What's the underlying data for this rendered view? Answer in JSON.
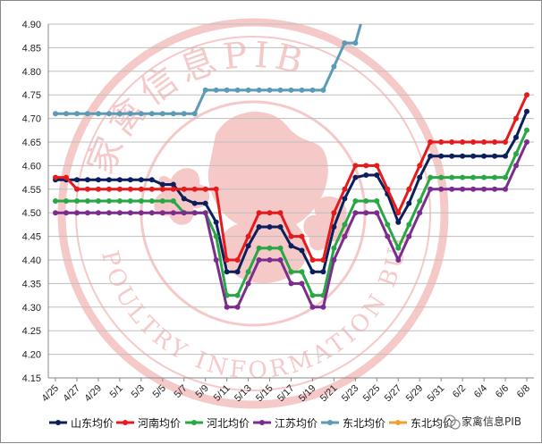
{
  "chart_data": {
    "type": "line",
    "title": "",
    "xlabel": "",
    "ylabel": "",
    "ylim": [
      4.15,
      4.9
    ],
    "y_ticks": [
      "4.90",
      "4.85",
      "4.80",
      "4.75",
      "4.70",
      "4.65",
      "4.60",
      "4.55",
      "4.50",
      "4.45",
      "4.40",
      "4.35",
      "4.30",
      "4.25",
      "4.20",
      "4.15"
    ],
    "x_tick_labels": [
      "4/25",
      "4/27",
      "4/29",
      "5/1",
      "5/3",
      "5/5",
      "5/7",
      "5/9",
      "5/11",
      "5/13",
      "5/15",
      "5/17",
      "5/19",
      "5/21",
      "5/23",
      "5/25",
      "5/27",
      "5/29",
      "5/31",
      "6/2",
      "6/4",
      "6/6",
      "6/8"
    ],
    "grid": true,
    "legend_position": "bottom",
    "series": [
      {
        "name": "山东均价",
        "color": "#0b1f5c",
        "values": [
          4.57,
          4.57,
          4.57,
          4.57,
          4.57,
          4.57,
          4.57,
          4.57,
          4.57,
          4.57,
          4.56,
          4.56,
          4.53,
          4.52,
          4.52,
          4.48,
          4.375,
          4.375,
          4.43,
          4.47,
          4.47,
          4.47,
          4.43,
          4.42,
          4.375,
          4.375,
          4.47,
          4.53,
          4.575,
          4.58,
          4.58,
          4.54,
          4.48,
          4.52,
          4.575,
          4.62,
          4.62,
          4.62,
          4.62,
          4.62,
          4.62,
          4.62,
          4.62,
          4.66,
          4.715
        ]
      },
      {
        "name": "河南均价",
        "color": "#e41a1c",
        "values": [
          4.575,
          4.575,
          4.55,
          4.55,
          4.55,
          4.55,
          4.55,
          4.55,
          4.55,
          4.55,
          4.55,
          4.55,
          4.55,
          4.55,
          4.55,
          4.55,
          4.4,
          4.4,
          4.45,
          4.5,
          4.5,
          4.5,
          4.45,
          4.45,
          4.4,
          4.4,
          4.5,
          4.55,
          4.6,
          4.6,
          4.6,
          4.55,
          4.5,
          4.55,
          4.6,
          4.65,
          4.65,
          4.65,
          4.65,
          4.65,
          4.65,
          4.65,
          4.65,
          4.7,
          4.75
        ]
      },
      {
        "name": "河北均价",
        "color": "#28a745",
        "values": [
          4.525,
          4.525,
          4.525,
          4.525,
          4.525,
          4.525,
          4.525,
          4.525,
          4.525,
          4.525,
          4.525,
          4.525,
          4.5,
          4.5,
          4.5,
          4.45,
          4.325,
          4.325,
          4.375,
          4.425,
          4.425,
          4.425,
          4.375,
          4.375,
          4.325,
          4.325,
          4.425,
          4.475,
          4.525,
          4.525,
          4.525,
          4.475,
          4.425,
          4.475,
          4.525,
          4.575,
          4.575,
          4.575,
          4.575,
          4.575,
          4.575,
          4.575,
          4.575,
          4.625,
          4.675
        ]
      },
      {
        "name": "江苏均价",
        "color": "#7b2d8e",
        "values": [
          4.5,
          4.5,
          4.5,
          4.5,
          4.5,
          4.5,
          4.5,
          4.5,
          4.5,
          4.5,
          4.5,
          4.5,
          4.5,
          4.5,
          4.5,
          4.4,
          4.3,
          4.3,
          4.35,
          4.4,
          4.4,
          4.4,
          4.35,
          4.35,
          4.3,
          4.3,
          4.4,
          4.45,
          4.5,
          4.5,
          4.5,
          4.45,
          4.4,
          4.45,
          4.5,
          4.55,
          4.55,
          4.55,
          4.55,
          4.55,
          4.55,
          4.55,
          4.55,
          4.6,
          4.65
        ]
      },
      {
        "name": "东北均价",
        "color": "#5b9bb5",
        "values": [
          4.71,
          4.71,
          4.71,
          4.71,
          4.71,
          4.71,
          4.71,
          4.71,
          4.71,
          4.71,
          4.71,
          4.71,
          4.71,
          4.71,
          4.76,
          4.76,
          4.76,
          4.76,
          4.76,
          4.76,
          4.76,
          4.76,
          4.76,
          4.76,
          4.76,
          4.76,
          4.81,
          4.86,
          4.86,
          4.94,
          null,
          null,
          null,
          null,
          null,
          null,
          null,
          null,
          null,
          null,
          null,
          null,
          null,
          null,
          null
        ]
      },
      {
        "name": "东北均价",
        "color": "#f0a030",
        "values": []
      }
    ]
  },
  "watermark": {
    "seal_top_text": "家禽信息PIB",
    "seal_bottom_text": "POULTRY INFORMATION BULLETIN",
    "wechat_label": "家禽信息PIB"
  }
}
